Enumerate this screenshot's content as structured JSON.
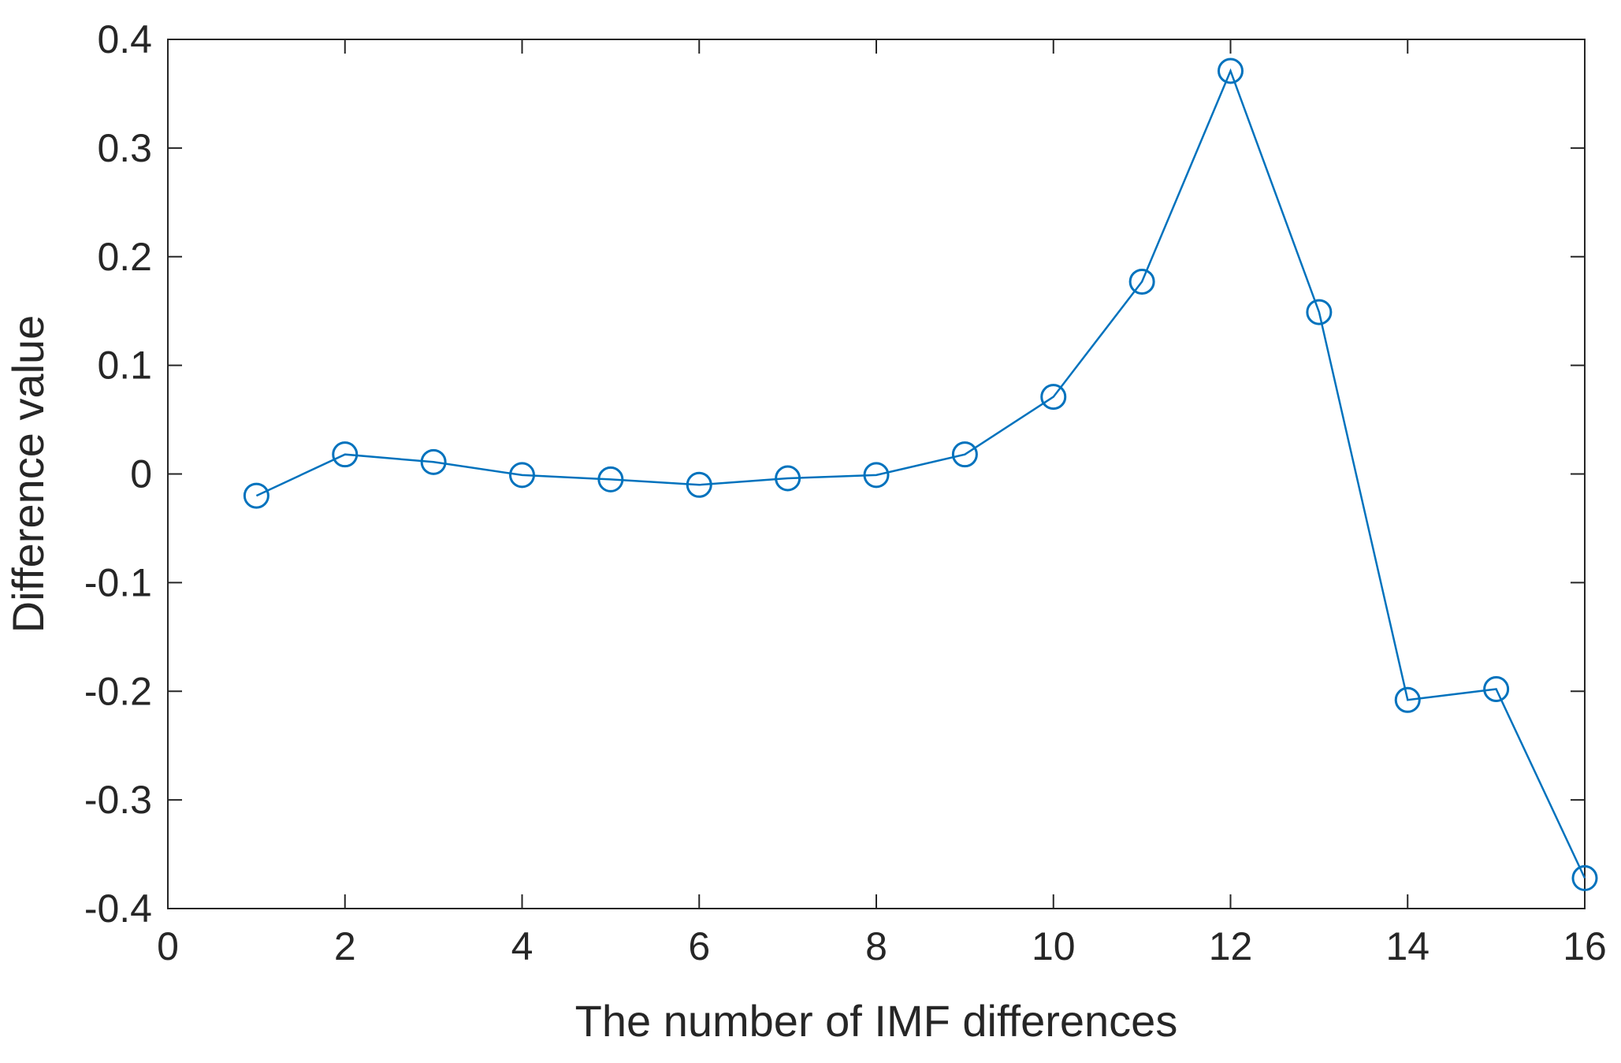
{
  "chart_data": {
    "type": "line",
    "title": "",
    "xlabel": "The number of IMF differences",
    "ylabel": "Difference value",
    "xlim": [
      0,
      16
    ],
    "ylim": [
      -0.4,
      0.4
    ],
    "xticks": [
      0,
      2,
      4,
      6,
      8,
      10,
      12,
      14,
      16
    ],
    "xtick_labels": [
      "0",
      "2",
      "4",
      "6",
      "8",
      "10",
      "12",
      "14",
      "16"
    ],
    "yticks": [
      -0.4,
      -0.3,
      -0.2,
      -0.1,
      0,
      0.1,
      0.2,
      0.3,
      0.4
    ],
    "ytick_labels": [
      "-0.4",
      "-0.3",
      "-0.2",
      "-0.1",
      "0",
      "0.1",
      "0.2",
      "0.3",
      "0.4"
    ],
    "grid": false,
    "legend": "none",
    "series": [
      {
        "color": "#0072BD",
        "marker": "circle",
        "x": [
          1,
          2,
          3,
          4,
          5,
          6,
          7,
          8,
          9,
          10,
          11,
          12,
          13,
          14,
          15,
          16
        ],
        "y": [
          -0.02,
          0.018,
          0.011,
          -0.001,
          -0.005,
          -0.01,
          -0.004,
          -0.001,
          0.018,
          0.071,
          0.177,
          0.371,
          0.149,
          -0.208,
          -0.198,
          -0.372
        ]
      }
    ]
  }
}
